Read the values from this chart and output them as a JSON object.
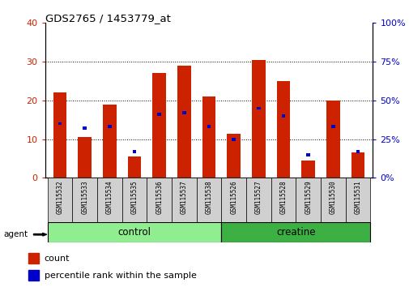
{
  "title": "GDS2765 / 1453779_at",
  "samples": [
    "GSM115532",
    "GSM115533",
    "GSM115534",
    "GSM115535",
    "GSM115536",
    "GSM115537",
    "GSM115538",
    "GSM115526",
    "GSM115527",
    "GSM115528",
    "GSM115529",
    "GSM115530",
    "GSM115531"
  ],
  "count_values": [
    22,
    10.5,
    19,
    5.5,
    27,
    29,
    21,
    11.5,
    30.5,
    25,
    4.5,
    20,
    6.5
  ],
  "percentile_values": [
    35,
    32,
    33,
    17,
    41,
    42,
    33,
    25,
    45,
    40,
    15,
    33,
    17
  ],
  "groups": [
    {
      "label": "control",
      "indices": [
        0,
        1,
        2,
        3,
        4,
        5,
        6
      ],
      "color": "#90EE90"
    },
    {
      "label": "creatine",
      "indices": [
        7,
        8,
        9,
        10,
        11,
        12
      ],
      "color": "#3CB043"
    }
  ],
  "bar_color_red": "#CC2200",
  "bar_color_blue": "#0000CC",
  "ylim_left": [
    0,
    40
  ],
  "ylim_right": [
    0,
    100
  ],
  "yticks_left": [
    0,
    10,
    20,
    30,
    40
  ],
  "yticks_right": [
    0,
    25,
    50,
    75,
    100
  ],
  "grid_color": "#000000",
  "axis_label_color_left": "#CC2200",
  "axis_label_color_right": "#0000CC",
  "agent_label": "agent",
  "legend_count": "count",
  "legend_percentile": "percentile rank within the sample",
  "bar_width": 0.55,
  "bg_color": "#D0D0D0",
  "plot_bg": "#FFFFFF"
}
